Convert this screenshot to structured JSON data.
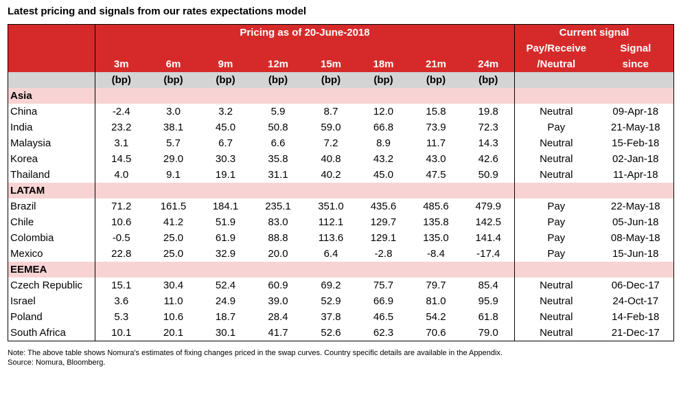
{
  "title": "Latest pricing and signals from our rates expectations model",
  "header": {
    "pricing_label": "Pricing as of 20-June-2018",
    "signal_label": "Current signal",
    "pay_line1": "Pay/Receive",
    "pay_line2": "/Neutral",
    "since_line1": "Signal",
    "since_line2": "since",
    "tenors": [
      "3m",
      "6m",
      "9m",
      "12m",
      "15m",
      "18m",
      "21m",
      "24m"
    ],
    "unit": "(bp)"
  },
  "sections": [
    {
      "name": "Asia",
      "rows": [
        {
          "country": "China",
          "values": [
            "-2.4",
            "3.0",
            "3.2",
            "5.9",
            "8.7",
            "12.0",
            "15.8",
            "19.8"
          ],
          "signal": "Neutral",
          "since": "09-Apr-18"
        },
        {
          "country": "India",
          "values": [
            "23.2",
            "38.1",
            "45.0",
            "50.8",
            "59.0",
            "66.8",
            "73.9",
            "72.3"
          ],
          "signal": "Pay",
          "since": "21-May-18"
        },
        {
          "country": "Malaysia",
          "values": [
            "3.1",
            "5.7",
            "6.7",
            "6.6",
            "7.2",
            "8.9",
            "11.7",
            "14.3"
          ],
          "signal": "Neutral",
          "since": "15-Feb-18"
        },
        {
          "country": "Korea",
          "values": [
            "14.5",
            "29.0",
            "30.3",
            "35.8",
            "40.8",
            "43.2",
            "43.0",
            "42.6"
          ],
          "signal": "Neutral",
          "since": "02-Jan-18"
        },
        {
          "country": "Thailand",
          "values": [
            "4.0",
            "9.1",
            "19.1",
            "31.1",
            "40.2",
            "45.0",
            "47.5",
            "50.9"
          ],
          "signal": "Neutral",
          "since": "11-Apr-18"
        }
      ]
    },
    {
      "name": "LATAM",
      "rows": [
        {
          "country": "Brazil",
          "values": [
            "71.2",
            "161.5",
            "184.1",
            "235.1",
            "351.0",
            "435.6",
            "485.6",
            "479.9"
          ],
          "signal": "Pay",
          "since": "22-May-18"
        },
        {
          "country": "Chile",
          "values": [
            "10.6",
            "41.2",
            "51.9",
            "83.0",
            "112.1",
            "129.7",
            "135.8",
            "142.5"
          ],
          "signal": "Pay",
          "since": "05-Jun-18"
        },
        {
          "country": "Colombia",
          "values": [
            "-0.5",
            "25.0",
            "61.9",
            "88.8",
            "113.6",
            "129.1",
            "135.0",
            "141.4"
          ],
          "signal": "Pay",
          "since": "08-May-18"
        },
        {
          "country": "Mexico",
          "values": [
            "22.8",
            "25.0",
            "32.9",
            "20.0",
            "6.4",
            "-2.8",
            "-8.4",
            "-17.4"
          ],
          "signal": "Pay",
          "since": "15-Jun-18"
        }
      ]
    },
    {
      "name": "EEMEA",
      "rows": [
        {
          "country": "Czech Republic",
          "values": [
            "15.1",
            "30.4",
            "52.4",
            "60.9",
            "69.2",
            "75.7",
            "79.7",
            "85.4"
          ],
          "signal": "Neutral",
          "since": "06-Dec-17"
        },
        {
          "country": "Israel",
          "values": [
            "3.6",
            "11.0",
            "24.9",
            "39.0",
            "52.9",
            "66.9",
            "81.0",
            "95.9"
          ],
          "signal": "Neutral",
          "since": "24-Oct-17"
        },
        {
          "country": "Poland",
          "values": [
            "5.3",
            "10.6",
            "18.7",
            "28.4",
            "37.8",
            "46.5",
            "54.2",
            "61.8"
          ],
          "signal": "Neutral",
          "since": "14-Feb-18"
        },
        {
          "country": "South Africa",
          "values": [
            "10.1",
            "20.1",
            "30.1",
            "41.7",
            "52.6",
            "62.3",
            "70.6",
            "79.0"
          ],
          "signal": "Neutral",
          "since": "21-Dec-17"
        }
      ]
    }
  ],
  "notes": {
    "note": "Note: The above table shows Nomura's estimates of fixing changes priced in the swap curves. Country specific details are available in the Appendix.",
    "source": "Source: Nomura, Bloomberg."
  }
}
